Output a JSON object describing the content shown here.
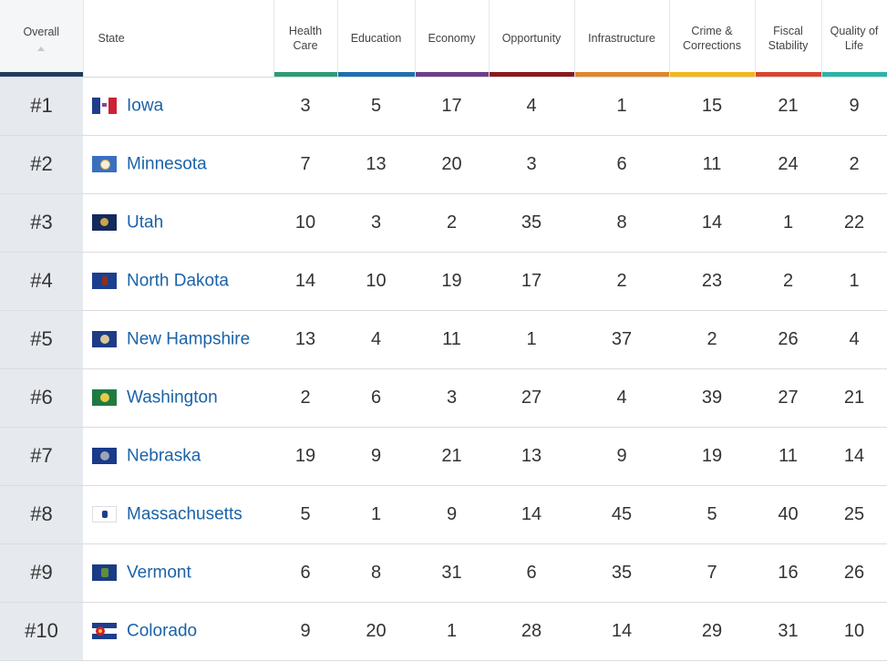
{
  "header": {
    "overall": "Overall",
    "state": "State",
    "columns": [
      {
        "label": "Health Care",
        "color": "#2a9d74"
      },
      {
        "label": "Education",
        "color": "#1f6fb0"
      },
      {
        "label": "Economy",
        "color": "#6d3d8e"
      },
      {
        "label": "Opportunity",
        "color": "#8a1a1a"
      },
      {
        "label": "Infrastructure",
        "color": "#e0862a"
      },
      {
        "label": "Crime & Corrections",
        "color": "#f2b619"
      },
      {
        "label": "Fiscal Stability",
        "color": "#d9442e"
      },
      {
        "label": "Quality of Life",
        "color": "#2ab5a6"
      }
    ],
    "overall_color": "#1f3a5f"
  },
  "rows": [
    {
      "rank": "#1",
      "state": "Iowa",
      "flag": "iowa",
      "scores": [
        "3",
        "5",
        "17",
        "4",
        "1",
        "15",
        "21",
        "9"
      ]
    },
    {
      "rank": "#2",
      "state": "Minnesota",
      "flag": "minnesota",
      "scores": [
        "7",
        "13",
        "20",
        "3",
        "6",
        "11",
        "24",
        "2"
      ]
    },
    {
      "rank": "#3",
      "state": "Utah",
      "flag": "utah",
      "scores": [
        "10",
        "3",
        "2",
        "35",
        "8",
        "14",
        "1",
        "22"
      ]
    },
    {
      "rank": "#4",
      "state": "North Dakota",
      "flag": "north-dakota",
      "scores": [
        "14",
        "10",
        "19",
        "17",
        "2",
        "23",
        "2",
        "1"
      ]
    },
    {
      "rank": "#5",
      "state": "New Hampshire",
      "flag": "new-hampshire",
      "scores": [
        "13",
        "4",
        "11",
        "1",
        "37",
        "2",
        "26",
        "4"
      ]
    },
    {
      "rank": "#6",
      "state": "Washington",
      "flag": "washington",
      "scores": [
        "2",
        "6",
        "3",
        "27",
        "4",
        "39",
        "27",
        "21"
      ]
    },
    {
      "rank": "#7",
      "state": "Nebraska",
      "flag": "nebraska",
      "scores": [
        "19",
        "9",
        "21",
        "13",
        "9",
        "19",
        "11",
        "14"
      ]
    },
    {
      "rank": "#8",
      "state": "Massachusetts",
      "flag": "massachusetts",
      "scores": [
        "5",
        "1",
        "9",
        "14",
        "45",
        "5",
        "40",
        "25"
      ]
    },
    {
      "rank": "#9",
      "state": "Vermont",
      "flag": "vermont",
      "scores": [
        "6",
        "8",
        "31",
        "6",
        "35",
        "7",
        "16",
        "26"
      ]
    },
    {
      "rank": "#10",
      "state": "Colorado",
      "flag": "colorado",
      "scores": [
        "9",
        "20",
        "1",
        "28",
        "14",
        "29",
        "31",
        "10"
      ]
    }
  ]
}
